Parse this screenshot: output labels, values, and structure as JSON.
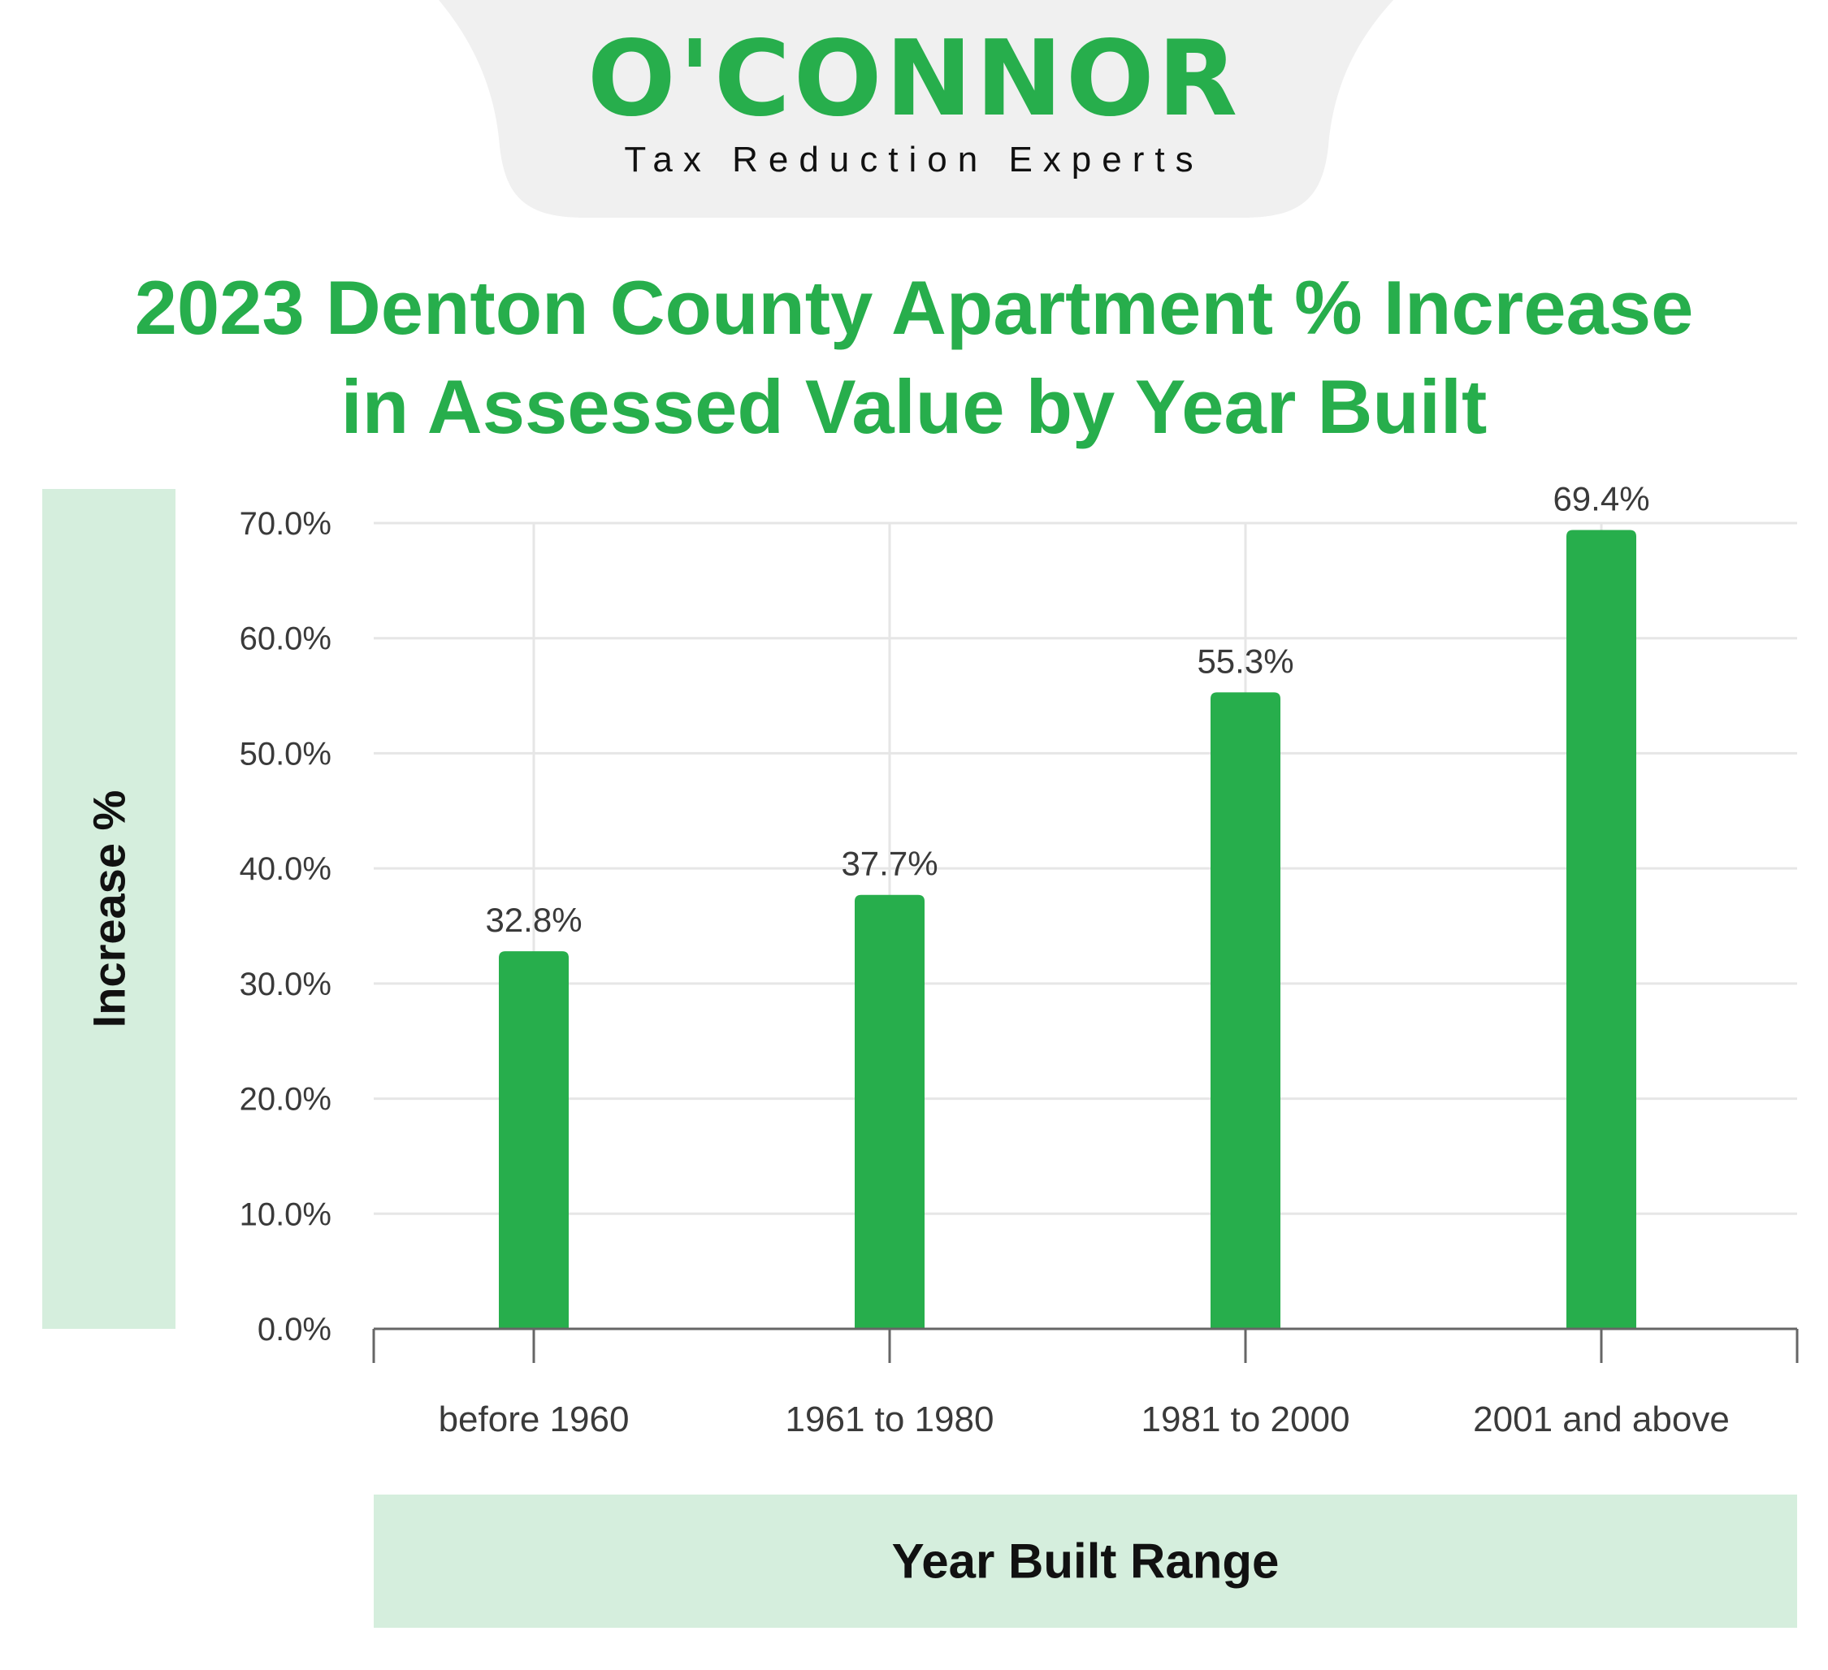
{
  "brand": {
    "name": "O'CONNOR",
    "tagline": "Tax Reduction Experts",
    "color": "#27ae4c"
  },
  "chart_data": {
    "type": "bar",
    "title": "2023 Denton County Apartment % Increase in Assessed Value by Year Built",
    "title_lines": [
      "2023 Denton County Apartment % Increase",
      "in Assessed Value by Year Built"
    ],
    "xlabel": "Year Built Range",
    "ylabel": "Increase %",
    "categories": [
      "before 1960",
      "1961 to 1980",
      "1981 to 2000",
      "2001 and above"
    ],
    "values": [
      32.8,
      37.7,
      55.3,
      69.4
    ],
    "value_labels": [
      "32.8%",
      "37.7%",
      "55.3%",
      "69.4%"
    ],
    "ylim": [
      0,
      70
    ],
    "yticks": [
      "0.0%",
      "10.0%",
      "20.0%",
      "30.0%",
      "40.0%",
      "50.0%",
      "60.0%",
      "70.0%"
    ],
    "grid": true,
    "bar_color": "#27ae4c",
    "label_box_color": "#d5eedd"
  }
}
